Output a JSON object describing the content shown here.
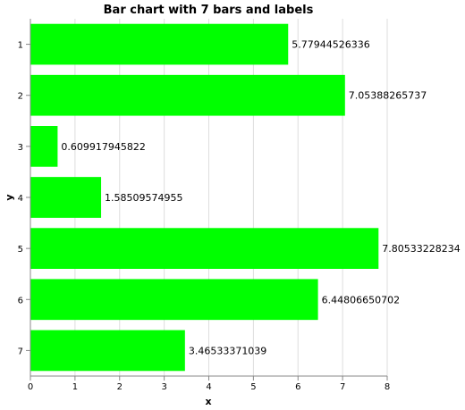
{
  "chart_data": {
    "type": "bar",
    "orientation": "horizontal",
    "title": "Bar chart with 7 bars and labels",
    "xlabel": "x",
    "ylabel": "y",
    "categories": [
      "1",
      "2",
      "3",
      "4",
      "5",
      "6",
      "7"
    ],
    "values": [
      5.77944526336,
      7.05388265737,
      0.609917945822,
      1.58509574955,
      7.80533228234,
      6.44806650702,
      3.46533371039
    ],
    "data_labels": [
      "5.77944526336",
      "7.05388265737",
      "0.609917945822",
      "1.58509574955",
      "7.80533228234",
      "6.44806650702",
      "3.46533371039"
    ],
    "xlim": [
      0,
      8
    ],
    "xticks": [
      "0",
      "1",
      "2",
      "3",
      "4",
      "5",
      "6",
      "7",
      "8"
    ],
    "grid": true,
    "bar_color": "#00ff00"
  }
}
